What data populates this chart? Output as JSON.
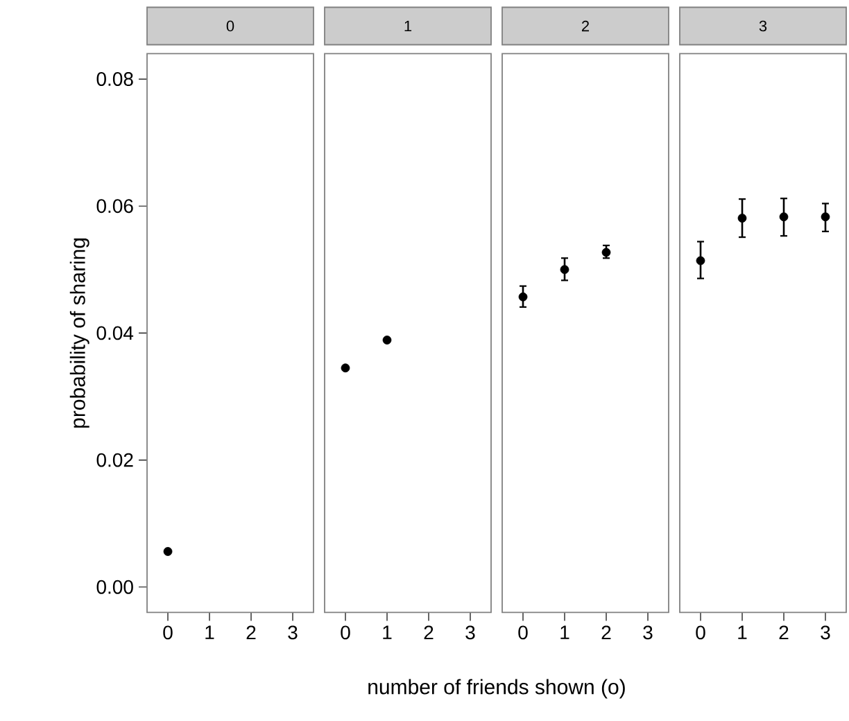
{
  "chart_data": [
    {
      "type": "scatter",
      "title": "0",
      "xlabel": "number of friends shown (o)",
      "ylabel": "probability of sharing",
      "x": [
        0
      ],
      "values": [
        0.0056
      ],
      "color": "#000000",
      "marker": "circle",
      "xlim": [
        -0.5,
        3.5
      ],
      "xticks": [
        0,
        1,
        2,
        3
      ],
      "ylim": [
        -0.004,
        0.084
      ],
      "yticks": [
        {
          "value": 0,
          "label": "0.00"
        },
        0.02,
        0.04,
        0.06,
        0.08
      ]
    },
    {
      "type": "scatter",
      "title": "1",
      "x": [
        0,
        1
      ],
      "values": [
        0.0345,
        0.0389
      ],
      "color": "#000000",
      "marker": "circle",
      "xlim": [
        -0.5,
        3.5
      ],
      "xticks": [
        0,
        1,
        2,
        3
      ],
      "ylim": [
        -0.004,
        0.084
      ],
      "tick_labels": "x"
    },
    {
      "type": "scatter",
      "title": "2",
      "x": [
        0,
        1,
        2
      ],
      "values": [
        0.0457,
        0.05,
        0.0527
      ],
      "errors": [
        [
          0.0441,
          0.0474
        ],
        [
          0.0483,
          0.0518
        ],
        [
          0.0518,
          0.0538
        ]
      ],
      "color": "#000000",
      "marker": "circle",
      "xlim": [
        -0.5,
        3.5
      ],
      "xticks": [
        0,
        1,
        2,
        3
      ],
      "ylim": [
        -0.004,
        0.084
      ],
      "tick_labels": "x"
    },
    {
      "type": "scatter",
      "title": "3",
      "x": [
        0,
        1,
        2,
        3
      ],
      "values": [
        0.0514,
        0.0581,
        0.0583,
        0.0583
      ],
      "errors": [
        [
          0.0486,
          0.0544
        ],
        [
          0.0551,
          0.0611
        ],
        [
          0.0553,
          0.0612
        ],
        [
          0.056,
          0.0604
        ]
      ],
      "color": "#000000",
      "marker": "circle",
      "xlim": [
        -0.5,
        3.5
      ],
      "xticks": [
        0,
        1,
        2,
        3
      ],
      "ylim": [
        -0.004,
        0.084
      ],
      "tick_labels": "x"
    }
  ]
}
